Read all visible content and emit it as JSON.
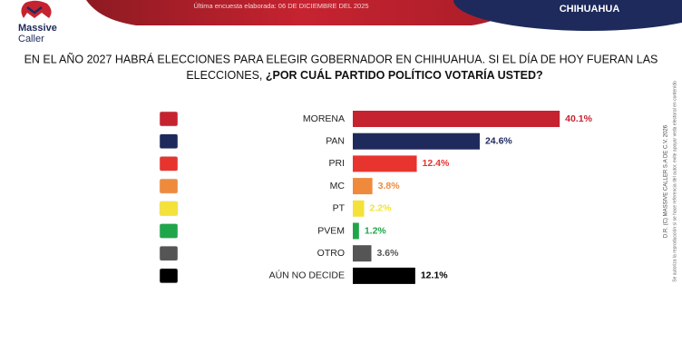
{
  "header": {
    "brand_line1": "Massive",
    "brand_line2": "Caller",
    "survey_date": "Última encuesta elaborada: 06 DE DICIEMBRE DEL 2025",
    "region": "CHIHUAHUA"
  },
  "chart_data": {
    "type": "bar",
    "orientation": "horizontal",
    "title_line1": "EN EL AÑO 2027 HABRÁ ELECCIONES PARA ELEGIR GOBERNADOR EN CHIHUAHUA. SI EL DÍA DE HOY FUERAN LAS",
    "title_line2": "ELECCIONES, ",
    "question": "¿POR CUÁL PARTIDO POLÍTICO VOTARÍA USTED?",
    "categories": [
      "MORENA",
      "PAN",
      "PRI",
      "MC",
      "PT",
      "PVEM",
      "OTRO",
      "AÚN NO DECIDE"
    ],
    "values": [
      40.1,
      24.6,
      12.4,
      3.8,
      2.2,
      1.2,
      3.6,
      12.1
    ],
    "value_labels": [
      "40.1%",
      "24.6%",
      "12.4%",
      "3.8%",
      "2.2%",
      "1.2%",
      "3.6%",
      "12.1%"
    ],
    "colors": [
      "#c62330",
      "#1e2a5c",
      "#e8342f",
      "#ef8a3d",
      "#f4e23a",
      "#20a64a",
      "#555555",
      "#000000"
    ]
  },
  "footer": {
    "copyright": "D.R. (C) MASSIVE CALLER S.A DE C.V. 2026",
    "notice": "Se autoriza la reproducción si se hace referencia del autor, evite apoyar veda electoral en contenido"
  }
}
